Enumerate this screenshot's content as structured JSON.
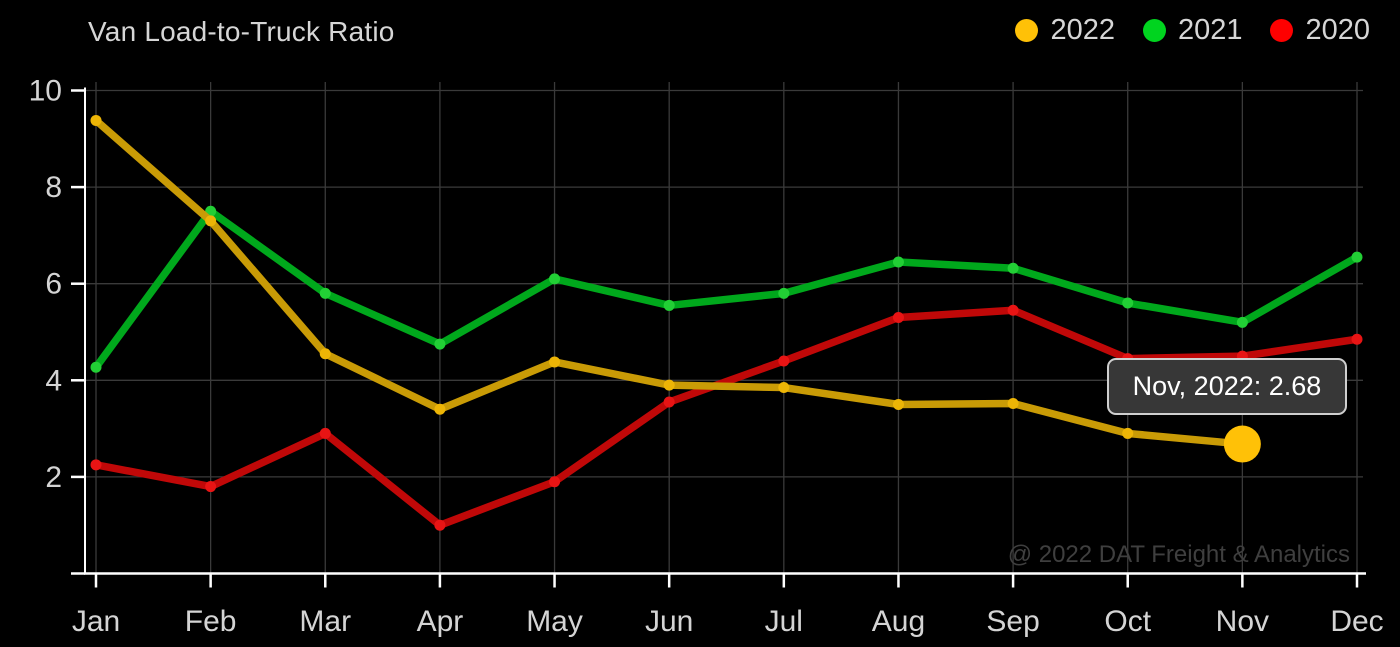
{
  "header": {
    "title": "Van Load-to-Truck Ratio"
  },
  "legend": [
    {
      "label": "2022",
      "color": "#ffc107"
    },
    {
      "label": "2021",
      "color": "#00d41f"
    },
    {
      "label": "2020",
      "color": "#fe0000"
    }
  ],
  "tooltip": {
    "text": "Nov, 2022: 2.68"
  },
  "watermark": "@ 2022 DAT Freight & Analytics",
  "chart_data": {
    "type": "line",
    "title": "Van Load-to-Truck Ratio",
    "categories": [
      "Jan",
      "Feb",
      "Mar",
      "Apr",
      "May",
      "Jun",
      "Jul",
      "Aug",
      "Sep",
      "Oct",
      "Nov",
      "Dec"
    ],
    "series": [
      {
        "name": "2020",
        "line_color": "#c00808",
        "marker_color": "#e81414",
        "values": [
          2.25,
          1.8,
          2.9,
          1.0,
          1.9,
          3.55,
          4.4,
          5.3,
          5.45,
          4.45,
          4.5,
          4.85
        ]
      },
      {
        "name": "2021",
        "line_color": "#00a81c",
        "marker_color": "#22cf35",
        "values": [
          4.27,
          7.5,
          5.8,
          4.75,
          6.1,
          5.55,
          5.8,
          6.45,
          6.32,
          5.6,
          5.2,
          6.55
        ]
      },
      {
        "name": "2022",
        "line_color": "#c99b06",
        "marker_color": "#edb506",
        "values": [
          9.38,
          7.3,
          4.55,
          3.4,
          4.38,
          3.9,
          3.85,
          3.5,
          3.52,
          2.9,
          2.68,
          null
        ]
      }
    ],
    "highlight": {
      "series": "2022",
      "category": "Nov",
      "value": 2.68,
      "color": "#ffc107"
    },
    "ylim": [
      0,
      10
    ],
    "yticks": [
      2,
      4,
      6,
      8,
      10
    ],
    "xlabel": "",
    "ylabel": "",
    "grid": true,
    "legend_position": "top-right",
    "grid_color": "#3a3a3a",
    "axis_color": "#ffffff",
    "label_color": "#d4d4d4"
  }
}
